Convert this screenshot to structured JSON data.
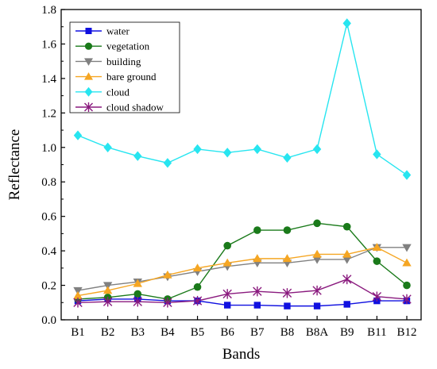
{
  "chart_data": {
    "type": "line",
    "xlabel": "Bands",
    "ylabel": "Reflectance",
    "categories": [
      "B1",
      "B2",
      "B3",
      "B4",
      "B5",
      "B6",
      "B7",
      "B8",
      "B8A",
      "B9",
      "B11",
      "B12"
    ],
    "ylim": [
      0,
      1.8
    ],
    "yticks": [
      "0.0",
      "0.2",
      "0.4",
      "0.6",
      "0.8",
      "1.0",
      "1.2",
      "1.4",
      "1.6",
      "1.8"
    ],
    "legend_position": "top-left",
    "grid": false,
    "series": [
      {
        "name": "water",
        "color": "#1010e0",
        "marker": "square",
        "values": [
          0.11,
          0.12,
          0.12,
          0.11,
          0.11,
          0.085,
          0.085,
          0.08,
          0.08,
          0.09,
          0.11,
          0.11
        ]
      },
      {
        "name": "vegetation",
        "color": "#1a7a1a",
        "marker": "circle",
        "values": [
          0.12,
          0.13,
          0.15,
          0.12,
          0.19,
          0.43,
          0.52,
          0.52,
          0.56,
          0.54,
          0.34,
          0.2
        ]
      },
      {
        "name": "building",
        "color": "#808080",
        "marker": "triangle-down",
        "values": [
          0.17,
          0.2,
          0.22,
          0.25,
          0.28,
          0.31,
          0.33,
          0.33,
          0.35,
          0.35,
          0.42,
          0.42
        ]
      },
      {
        "name": "bare ground",
        "color": "#f5a623",
        "marker": "triangle-up",
        "values": [
          0.14,
          0.17,
          0.21,
          0.26,
          0.3,
          0.33,
          0.355,
          0.355,
          0.38,
          0.38,
          0.42,
          0.33
        ]
      },
      {
        "name": "cloud",
        "color": "#27e5f0",
        "marker": "diamond",
        "values": [
          1.07,
          1.0,
          0.95,
          0.91,
          0.99,
          0.97,
          0.99,
          0.94,
          0.99,
          1.72,
          0.96,
          0.84
        ]
      },
      {
        "name": "cloud shadow",
        "color": "#8a1a7e",
        "marker": "asterisk",
        "values": [
          0.1,
          0.105,
          0.105,
          0.1,
          0.11,
          0.15,
          0.165,
          0.155,
          0.17,
          0.235,
          0.135,
          0.12
        ]
      }
    ]
  }
}
